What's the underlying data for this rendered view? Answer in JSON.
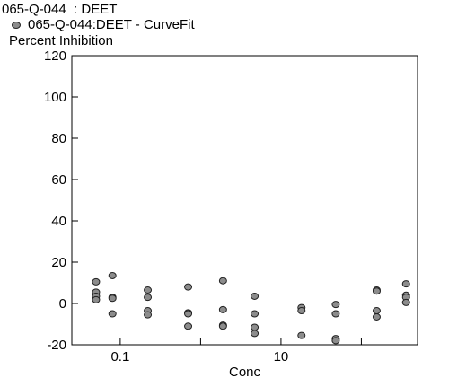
{
  "chart_data": {
    "type": "scatter",
    "title": "065-Q-044  : DEET",
    "legend": [
      {
        "label": "065-Q-044:DEET - CurveFit",
        "color": "#8c8c8c"
      }
    ],
    "ylabel": "Percent Inhibition",
    "xlabel": "Conc",
    "x_scale": "log",
    "xlim": [
      0.025,
      500
    ],
    "ylim": [
      -20,
      120
    ],
    "y_ticks": [
      "120",
      "100",
      "80",
      "60",
      "40",
      "20",
      "0",
      "-20"
    ],
    "x_ticks": [
      "0.1",
      "10"
    ],
    "grid": false,
    "point_color": "#8c8c8c",
    "series": [
      {
        "points": [
          {
            "x": 0.05,
            "y": 10.5
          },
          {
            "x": 0.05,
            "y": 5.5
          },
          {
            "x": 0.05,
            "y": 3.5
          },
          {
            "x": 0.05,
            "y": 1.8
          },
          {
            "x": 0.08,
            "y": 13.5
          },
          {
            "x": 0.08,
            "y": 3.0
          },
          {
            "x": 0.08,
            "y": 2.5
          },
          {
            "x": 0.08,
            "y": -5.0
          },
          {
            "x": 0.22,
            "y": 6.5
          },
          {
            "x": 0.22,
            "y": 3.0
          },
          {
            "x": 0.22,
            "y": -3.5
          },
          {
            "x": 0.22,
            "y": -5.5
          },
          {
            "x": 0.7,
            "y": 8.0
          },
          {
            "x": 0.7,
            "y": -4.5
          },
          {
            "x": 0.7,
            "y": -5.0
          },
          {
            "x": 0.7,
            "y": -11.0
          },
          {
            "x": 1.9,
            "y": 11.0
          },
          {
            "x": 1.9,
            "y": -3.0
          },
          {
            "x": 1.9,
            "y": -10.5
          },
          {
            "x": 1.9,
            "y": -11.0
          },
          {
            "x": 4.7,
            "y": 3.5
          },
          {
            "x": 4.7,
            "y": -5.0
          },
          {
            "x": 4.7,
            "y": -11.5
          },
          {
            "x": 4.7,
            "y": -14.5
          },
          {
            "x": 18,
            "y": -2.0
          },
          {
            "x": 18,
            "y": -3.5
          },
          {
            "x": 18,
            "y": -15.5
          },
          {
            "x": 48,
            "y": -0.5
          },
          {
            "x": 48,
            "y": -5.0
          },
          {
            "x": 48,
            "y": -17.0
          },
          {
            "x": 48,
            "y": -18.0
          },
          {
            "x": 155,
            "y": 6.5
          },
          {
            "x": 155,
            "y": 6.0
          },
          {
            "x": 155,
            "y": -3.5
          },
          {
            "x": 155,
            "y": -6.5
          },
          {
            "x": 360,
            "y": 9.5
          },
          {
            "x": 360,
            "y": 4.0
          },
          {
            "x": 360,
            "y": 3.0
          },
          {
            "x": 360,
            "y": 0.5
          }
        ]
      }
    ]
  }
}
